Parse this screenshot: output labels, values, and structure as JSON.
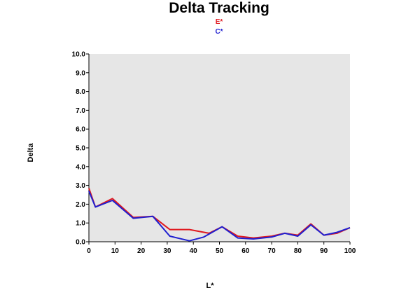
{
  "chart_data": {
    "type": "line",
    "title": "Delta Tracking",
    "xlabel": "L*",
    "ylabel": "Delta",
    "xlim": [
      0,
      100
    ],
    "ylim": [
      0,
      10
    ],
    "xticks": [
      0,
      10,
      20,
      30,
      40,
      50,
      60,
      70,
      80,
      90,
      100
    ],
    "yticks": [
      0.0,
      1.0,
      2.0,
      3.0,
      4.0,
      5.0,
      6.0,
      7.0,
      8.0,
      9.0,
      10.0
    ],
    "grid": false,
    "legend_position": "top-center",
    "plot_background": "#e6e6e6",
    "series": [
      {
        "name": "E*",
        "color": "#e0191f",
        "x": [
          0,
          2.5,
          9,
          17,
          24.5,
          31,
          38.5,
          46,
          51,
          57,
          63,
          70,
          75,
          80,
          85,
          90,
          95,
          100
        ],
        "values": [
          2.85,
          1.85,
          2.3,
          1.3,
          1.35,
          0.65,
          0.65,
          0.45,
          0.8,
          0.3,
          0.2,
          0.3,
          0.45,
          0.35,
          0.95,
          0.35,
          0.45,
          0.75
        ]
      },
      {
        "name": "C*",
        "color": "#1f1fd0",
        "x": [
          0,
          2.5,
          9,
          17,
          24.5,
          31,
          38.5,
          44,
          51,
          57,
          63,
          70,
          75,
          80,
          85,
          90,
          95,
          100
        ],
        "values": [
          2.7,
          1.85,
          2.2,
          1.25,
          1.35,
          0.3,
          0.05,
          0.25,
          0.8,
          0.2,
          0.15,
          0.25,
          0.45,
          0.3,
          0.9,
          0.35,
          0.5,
          0.75
        ]
      }
    ]
  }
}
